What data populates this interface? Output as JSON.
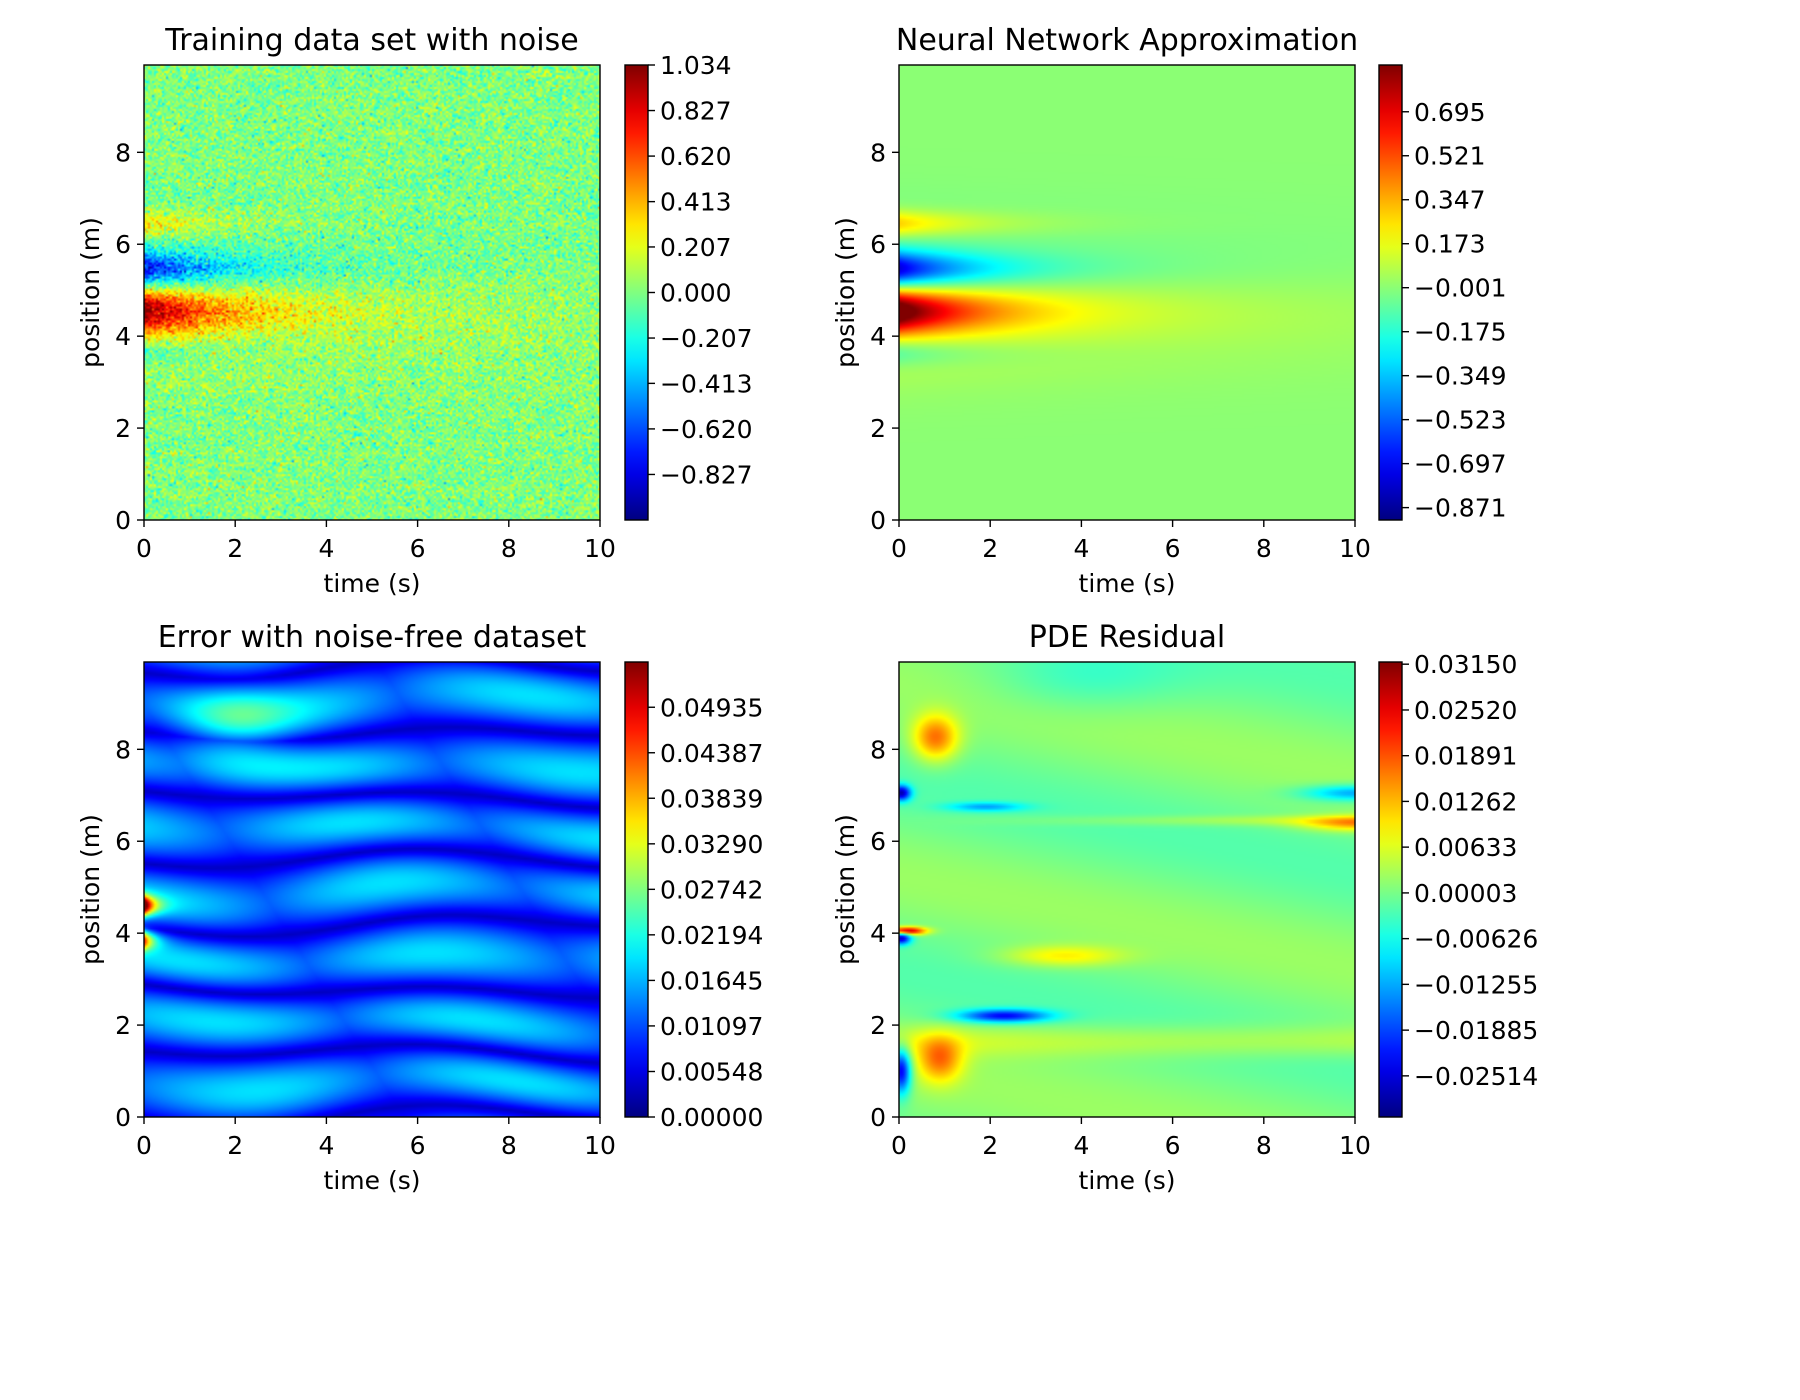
{
  "chart_data": [
    {
      "type": "heatmap",
      "field": "noisy",
      "title": "Training data set with noise",
      "xlabel": "time (s)",
      "ylabel": "position (m)",
      "xlim": [
        0,
        10
      ],
      "ylim": [
        0,
        9.9
      ],
      "xticks": [
        "0",
        "2",
        "4",
        "6",
        "8",
        "10"
      ],
      "yticks": [
        "0",
        "2",
        "4",
        "6",
        "8"
      ],
      "colormap": "jet",
      "colorbar": {
        "min": -1.034,
        "max": 1.034,
        "ticks": [
          {
            "value": 1.034,
            "label": "1.034"
          },
          {
            "value": 0.827,
            "label": "0.827"
          },
          {
            "value": 0.62,
            "label": "0.620"
          },
          {
            "value": 0.413,
            "label": "0.413"
          },
          {
            "value": 0.207,
            "label": "0.207"
          },
          {
            "value": 0.0,
            "label": "0.000"
          },
          {
            "value": -0.207,
            "label": "−0.207"
          },
          {
            "value": -0.413,
            "label": "−0.413"
          },
          {
            "value": -0.62,
            "label": "−0.620"
          },
          {
            "value": -0.827,
            "label": "−0.827"
          }
        ]
      }
    },
    {
      "type": "heatmap",
      "field": "nn",
      "title": "Neural Network Approximation",
      "xlabel": "time (s)",
      "ylabel": "position (m)",
      "xlim": [
        0,
        10
      ],
      "ylim": [
        0,
        9.9
      ],
      "xticks": [
        "0",
        "2",
        "4",
        "6",
        "8",
        "10"
      ],
      "yticks": [
        "0",
        "2",
        "4",
        "6",
        "8"
      ],
      "colormap": "jet",
      "colorbar": {
        "min": -0.92,
        "max": 0.88,
        "ticks": [
          {
            "value": 0.695,
            "label": "0.695"
          },
          {
            "value": 0.521,
            "label": "0.521"
          },
          {
            "value": 0.347,
            "label": "0.347"
          },
          {
            "value": 0.173,
            "label": "0.173"
          },
          {
            "value": -0.001,
            "label": "−0.001"
          },
          {
            "value": -0.175,
            "label": "−0.175"
          },
          {
            "value": -0.349,
            "label": "−0.349"
          },
          {
            "value": -0.523,
            "label": "−0.523"
          },
          {
            "value": -0.697,
            "label": "−0.697"
          },
          {
            "value": -0.871,
            "label": "−0.871"
          }
        ]
      }
    },
    {
      "type": "heatmap",
      "field": "error",
      "title": "Error with noise-free dataset",
      "xlabel": "time (s)",
      "ylabel": "position (m)",
      "xlim": [
        0,
        10
      ],
      "ylim": [
        0,
        9.9
      ],
      "xticks": [
        "0",
        "2",
        "4",
        "6",
        "8",
        "10"
      ],
      "yticks": [
        "0",
        "2",
        "4",
        "6",
        "8"
      ],
      "colormap": "jet",
      "colorbar": {
        "min": 0.0,
        "max": 0.0548,
        "ticks": [
          {
            "value": 0.04935,
            "label": "0.04935"
          },
          {
            "value": 0.04387,
            "label": "0.04387"
          },
          {
            "value": 0.03839,
            "label": "0.03839"
          },
          {
            "value": 0.0329,
            "label": "0.03290"
          },
          {
            "value": 0.02742,
            "label": "0.02742"
          },
          {
            "value": 0.02194,
            "label": "0.02194"
          },
          {
            "value": 0.01645,
            "label": "0.01645"
          },
          {
            "value": 0.01097,
            "label": "0.01097"
          },
          {
            "value": 0.00548,
            "label": "0.00548"
          },
          {
            "value": 0.0,
            "label": "0.00000"
          }
        ]
      }
    },
    {
      "type": "heatmap",
      "field": "residual",
      "title": "PDE Residual",
      "xlabel": "time (s)",
      "ylabel": "position (m)",
      "xlim": [
        0,
        10
      ],
      "ylim": [
        0,
        9.9
      ],
      "xticks": [
        "0",
        "2",
        "4",
        "6",
        "8",
        "10"
      ],
      "yticks": [
        "0",
        "2",
        "4",
        "6",
        "8"
      ],
      "colormap": "jet",
      "colorbar": {
        "min": -0.0308,
        "max": 0.0318,
        "ticks": [
          {
            "value": 0.0315,
            "label": "0.03150"
          },
          {
            "value": 0.0252,
            "label": "0.02520"
          },
          {
            "value": 0.01891,
            "label": "0.01891"
          },
          {
            "value": 0.01262,
            "label": "0.01262"
          },
          {
            "value": 0.00633,
            "label": "0.00633"
          },
          {
            "value": 3e-05,
            "label": "0.00003"
          },
          {
            "value": -0.00626,
            "label": "−0.00626"
          },
          {
            "value": -0.01255,
            "label": "−0.01255"
          },
          {
            "value": -0.01885,
            "label": "−0.01885"
          },
          {
            "value": -0.02514,
            "label": "−0.02514"
          }
        ]
      }
    }
  ]
}
